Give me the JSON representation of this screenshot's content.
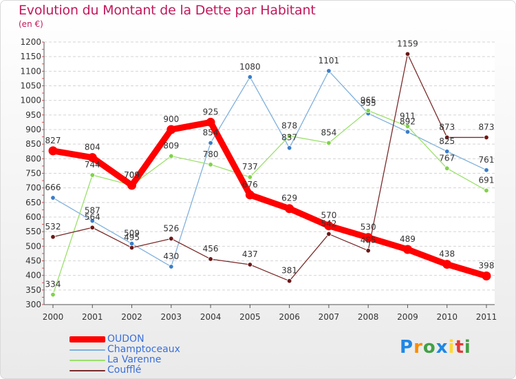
{
  "chart_data": {
    "type": "line",
    "title": "Evolution du Montant de la Dette par Habitant",
    "ylabel": "(en €)",
    "xlabel": "",
    "categories": [
      "2000",
      "2001",
      "2002",
      "2003",
      "2004",
      "2005",
      "2006",
      "2007",
      "2008",
      "2009",
      "2010",
      "2011"
    ],
    "ylim": [
      300,
      1200
    ],
    "yticks": [
      300,
      350,
      400,
      450,
      500,
      550,
      600,
      650,
      700,
      750,
      800,
      850,
      900,
      950,
      1000,
      1050,
      1100,
      1150,
      1200
    ],
    "series": [
      {
        "name": "OUDON",
        "color": "#ff0000",
        "marker": "#ff0000",
        "values": [
          827,
          804,
          709,
          900,
          925,
          676,
          629,
          570,
          530,
          489,
          438,
          398
        ]
      },
      {
        "name": "Champtoceaux",
        "color": "#7fb0dd",
        "marker": "#3a7ec8",
        "values": [
          666,
          587,
          509,
          430,
          854,
          1080,
          837,
          1101,
          955,
          892,
          825,
          761
        ]
      },
      {
        "name": "La Varenne",
        "color": "#9be06a",
        "marker": "#7ed348",
        "values": [
          334,
          744,
          709,
          809,
          780,
          737,
          878,
          854,
          965,
          911,
          767,
          691
        ]
      },
      {
        "name": "Coufflé",
        "color": "#7a2a2a",
        "marker": "#6b1818",
        "values": [
          532,
          564,
          495,
          526,
          456,
          437,
          381,
          542,
          485,
          1159,
          873,
          873
        ]
      }
    ],
    "legend_position": "bottom-left"
  },
  "legend": [
    {
      "label": "OUDON"
    },
    {
      "label": "Champtoceaux"
    },
    {
      "label": "La Varenne"
    },
    {
      "label": "Coufflé"
    }
  ],
  "logo": {
    "letters": [
      "P",
      "r",
      "o",
      "x",
      "i",
      "t",
      "i"
    ],
    "colors": [
      "#1e88e5",
      "#fb8c00",
      "#43a047",
      "#1e88e5",
      "#fdd835",
      "#e53935",
      "#43a047"
    ]
  }
}
